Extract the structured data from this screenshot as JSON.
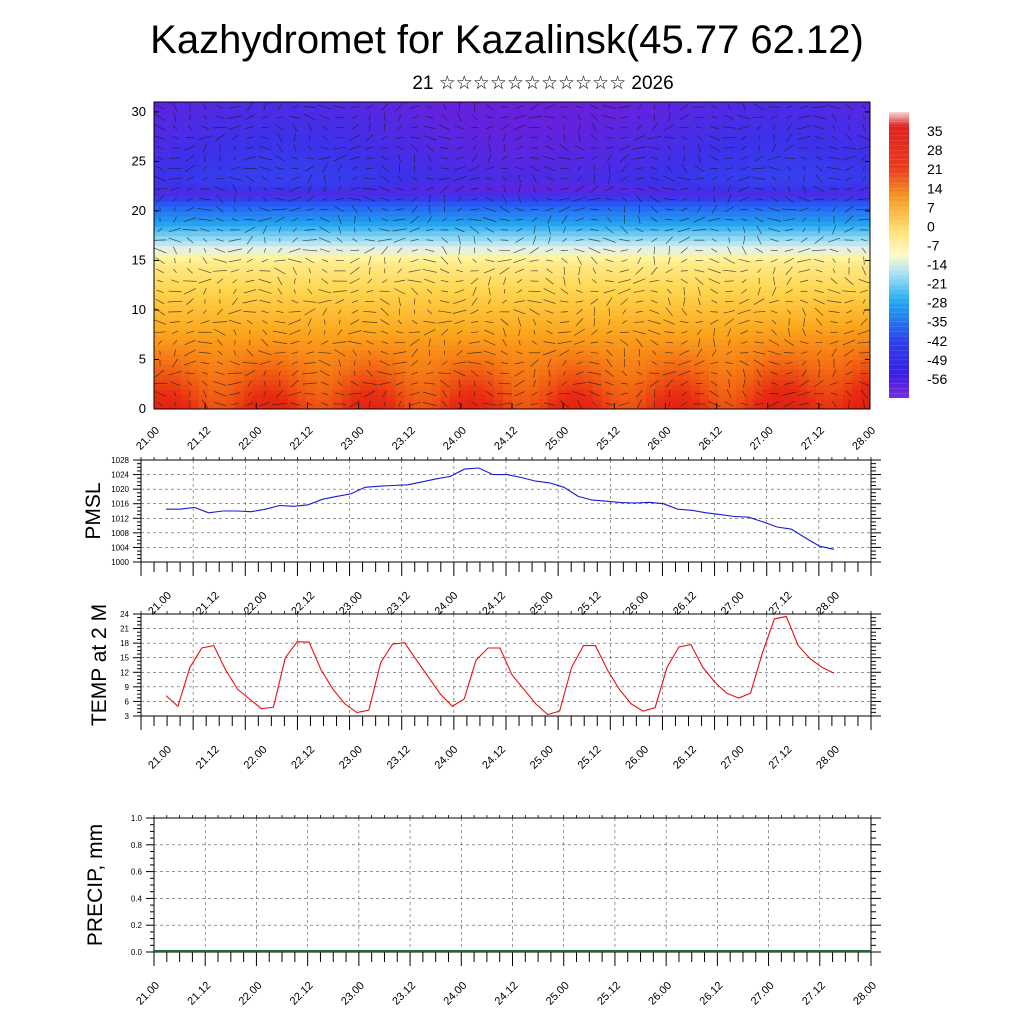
{
  "title": "Kazhydromet for Kazalinsk(45.77 62.12)",
  "subtitle": "21 ☆☆☆☆☆☆☆☆☆☆☆ 2026",
  "chart_data": [
    {
      "type": "heatmap",
      "name": "upper-air temperature and wind cross-section",
      "x_tick_labels": [
        "21.00",
        "21.12",
        "22.00",
        "22.12",
        "23.00",
        "23.12",
        "24.00",
        "24.12",
        "25.00",
        "25.12",
        "26.00",
        "26.12",
        "27.00",
        "27.12",
        "28.00"
      ],
      "y_ticks": [
        0,
        5,
        10,
        15,
        20,
        25,
        30
      ],
      "ylim": [
        0,
        31
      ],
      "colorbar_labels": [
        35,
        28,
        21,
        14,
        7,
        0,
        -7,
        -14,
        -21,
        -28,
        -35,
        -42,
        -49,
        -56
      ],
      "zlim": [
        -63,
        42
      ],
      "wind_barbs": true,
      "colors": {
        "cold": "#6a1fd8",
        "cool": "#2a62f0",
        "mild": "#fff3a6",
        "warm": "#f39a18",
        "hot": "#e31414"
      }
    },
    {
      "type": "line",
      "ylabel": "PMSL",
      "x_tick_labels": [
        "21.00",
        "21.12",
        "22.00",
        "22.12",
        "23.00",
        "23.12",
        "24.00",
        "24.12",
        "25.00",
        "25.12",
        "26.00",
        "26.12",
        "27.00",
        "27.12",
        "28.00"
      ],
      "y_ticks": [
        1000,
        1004,
        1008,
        1012,
        1016,
        1020,
        1024,
        1028
      ],
      "ylim": [
        1000,
        1028
      ],
      "series": [
        {
          "name": "PMSL",
          "color": "#1a1ad6",
          "values": [
            1014.5,
            1014.5,
            1015,
            1013.5,
            1014,
            1014,
            1013.8,
            1014.5,
            1015.5,
            1015.3,
            1015.7,
            1017.2,
            1018,
            1018.7,
            1020.5,
            1020.8,
            1021,
            1021.2,
            1022,
            1022.8,
            1023.5,
            1025.5,
            1025.8,
            1024,
            1024,
            1023.2,
            1022.2,
            1021.7,
            1020.5,
            1018,
            1017,
            1016.7,
            1016.3,
            1016.2,
            1016.4,
            1016,
            1014.5,
            1014.2,
            1013.5,
            1013,
            1012.5,
            1012.3,
            1011,
            1009.6,
            1009,
            1006.6,
            1004.3,
            1003.5
          ]
        }
      ]
    },
    {
      "type": "line",
      "ylabel": "TEMP at 2 M",
      "x_tick_labels": [
        "21.00",
        "21.12",
        "22.00",
        "22.12",
        "23.00",
        "23.12",
        "24.00",
        "24.12",
        "25.00",
        "25.12",
        "26.00",
        "26.12",
        "27.00",
        "27.12",
        "28.00"
      ],
      "y_ticks": [
        3,
        6,
        9,
        12,
        15,
        18,
        21,
        24
      ],
      "ylim": [
        3,
        24
      ],
      "series": [
        {
          "name": "TEMP at 2 M",
          "color": "#e81010",
          "values": [
            7.2,
            5,
            13,
            17,
            17.5,
            12.5,
            8.5,
            6.5,
            4.5,
            4.8,
            15,
            18.3,
            18.2,
            12.5,
            8.5,
            5.5,
            3.7,
            4.2,
            14,
            17.8,
            18.1,
            14.5,
            11,
            7.5,
            5,
            6.5,
            14.5,
            17,
            17,
            11.5,
            8.5,
            5.5,
            3.3,
            4,
            13,
            17.5,
            17.5,
            12.5,
            8.5,
            5.5,
            4,
            4.7,
            13,
            17.2,
            17.7,
            13,
            10,
            7.7,
            6.7,
            7.7,
            16,
            23,
            23.5,
            17.5,
            14.8,
            13,
            11.8
          ]
        }
      ]
    },
    {
      "type": "bar",
      "ylabel": "PRECIP, mm",
      "x_tick_labels": [
        "21.00",
        "21.12",
        "22.00",
        "22.12",
        "23.00",
        "23.12",
        "24.00",
        "24.12",
        "25.00",
        "25.12",
        "26.00",
        "26.12",
        "27.00",
        "27.12",
        "28.00"
      ],
      "y_ticks": [
        "0.0",
        "0.2",
        "0.4",
        "0.6",
        "0.8",
        "1.0"
      ],
      "ylim": [
        0,
        1
      ],
      "series": [
        {
          "name": "PRECIP",
          "values": []
        }
      ]
    }
  ]
}
